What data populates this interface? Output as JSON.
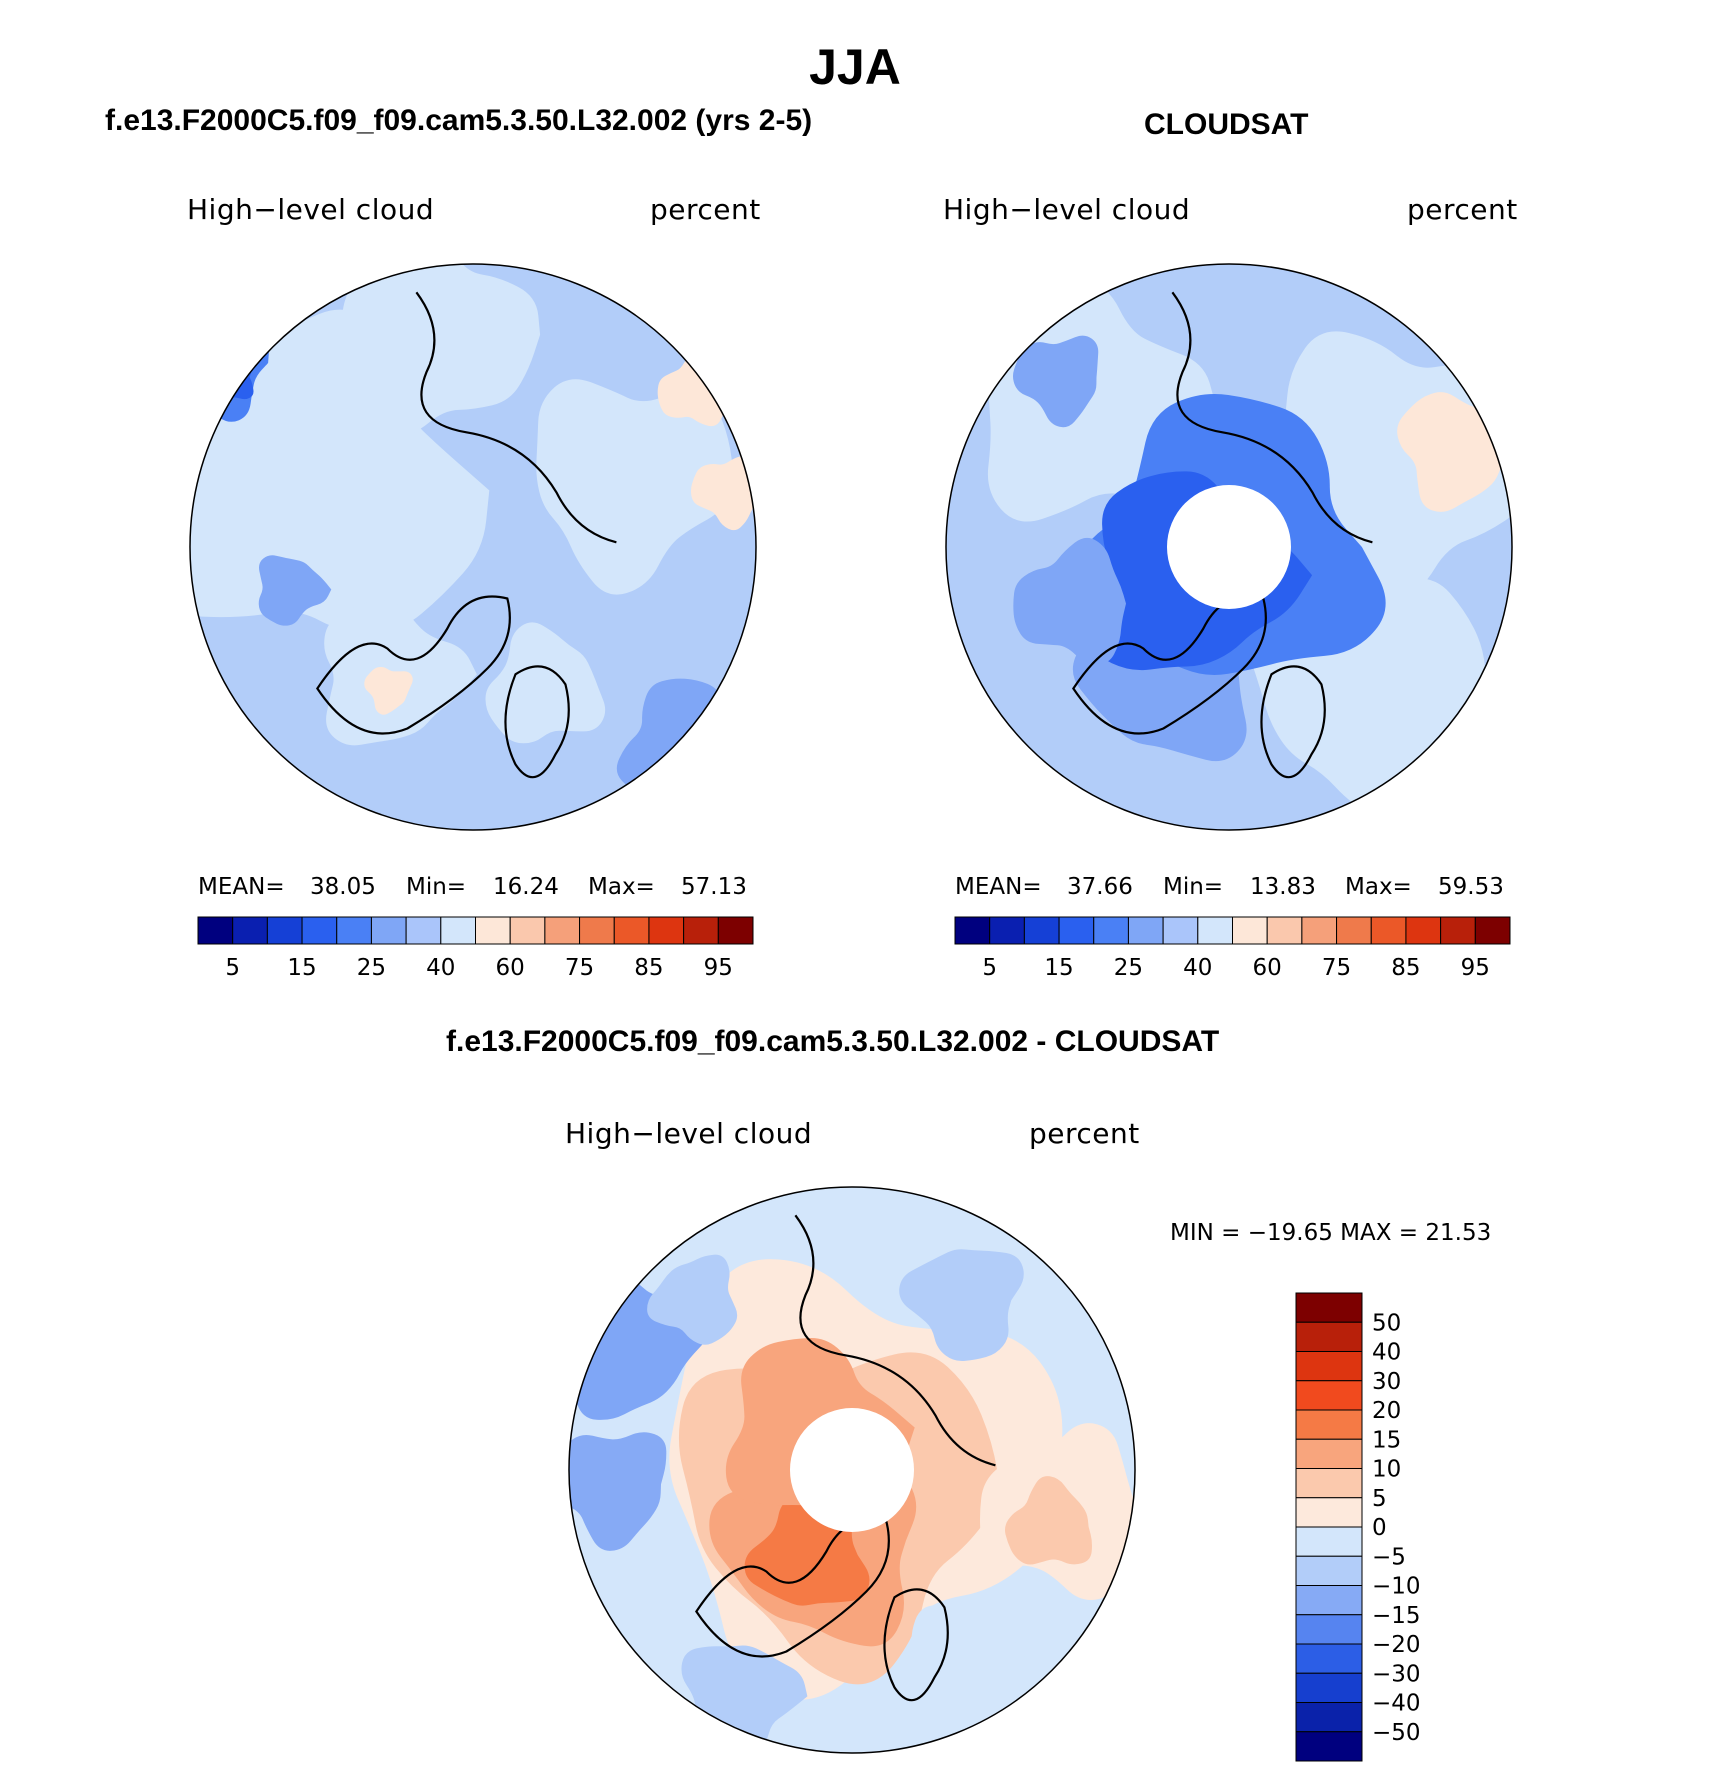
{
  "title": "JJA",
  "panels": [
    {
      "title": "f.e13.F2000C5.f09_f09.cam5.3.50.L32.002 (yrs 2-5)",
      "variable": "High−level cloud",
      "units": "percent",
      "stats": {
        "mean_label": "MEAN=",
        "mean": "38.05",
        "min_label": "Min=",
        "min": "16.24",
        "max_label": "Max=",
        "max": "57.13"
      }
    },
    {
      "title": "CLOUDSAT",
      "variable": "High−level cloud",
      "units": "percent",
      "stats": {
        "mean_label": "MEAN=",
        "mean": "37.66",
        "min_label": "Min=",
        "min": "13.83",
        "max_label": "Max=",
        "max": "59.53"
      }
    },
    {
      "title": "f.e13.F2000C5.f09_f09.cam5.3.50.L32.002 - CLOUDSAT",
      "variable": "High−level cloud",
      "units": "percent",
      "minmax": "MIN = −19.65 MAX =   21.53"
    }
  ],
  "chart_data": [
    {
      "type": "heatmap",
      "projection": "north polar stereographic",
      "field": "High-level cloud",
      "units": "percent",
      "mean": 38.05,
      "min": 16.24,
      "max": 57.13,
      "colorbar_ticks": [
        5,
        15,
        25,
        40,
        60,
        75,
        85,
        95
      ],
      "colorbar_colors": [
        "#00007f",
        "#0a1fb0",
        "#1540d6",
        "#2a60ef",
        "#4a80f5",
        "#7fa6f6",
        "#aac5fa",
        "#d3e6fb",
        "#fde7d8",
        "#fac8ad",
        "#f5a07a",
        "#ef7a4b",
        "#eb5828",
        "#dd3510",
        "#b8200a",
        "#7d0000"
      ],
      "colorbar_orientation": "horizontal"
    },
    {
      "type": "heatmap",
      "projection": "north polar stereographic",
      "field": "High-level cloud",
      "units": "percent",
      "mean": 37.66,
      "min": 13.83,
      "max": 59.53,
      "colorbar_ticks": [
        5,
        15,
        25,
        40,
        60,
        75,
        85,
        95
      ],
      "colorbar_orientation": "horizontal",
      "missing_region": "pole"
    },
    {
      "type": "heatmap",
      "projection": "north polar stereographic",
      "field": "High-level cloud",
      "units": "percent",
      "min": -19.65,
      "max": 21.53,
      "colorbar_ticks": [
        "50",
        "40",
        "30",
        "20",
        "15",
        "10",
        "5",
        "0",
        "−5",
        "−10",
        "−15",
        "−20",
        "−30",
        "−40",
        "−50"
      ],
      "colorbar_colors": [
        "#7d0000",
        "#b8200a",
        "#dd3510",
        "#f14a1e",
        "#f57a45",
        "#f8a57d",
        "#fbc9ad",
        "#fde9dc",
        "#d3e6fb",
        "#b2cdf9",
        "#86aaf5",
        "#5684f0",
        "#2c5ee6",
        "#163fcf",
        "#0a22aa",
        "#00007f"
      ],
      "colorbar_orientation": "vertical",
      "missing_region": "pole"
    }
  ]
}
